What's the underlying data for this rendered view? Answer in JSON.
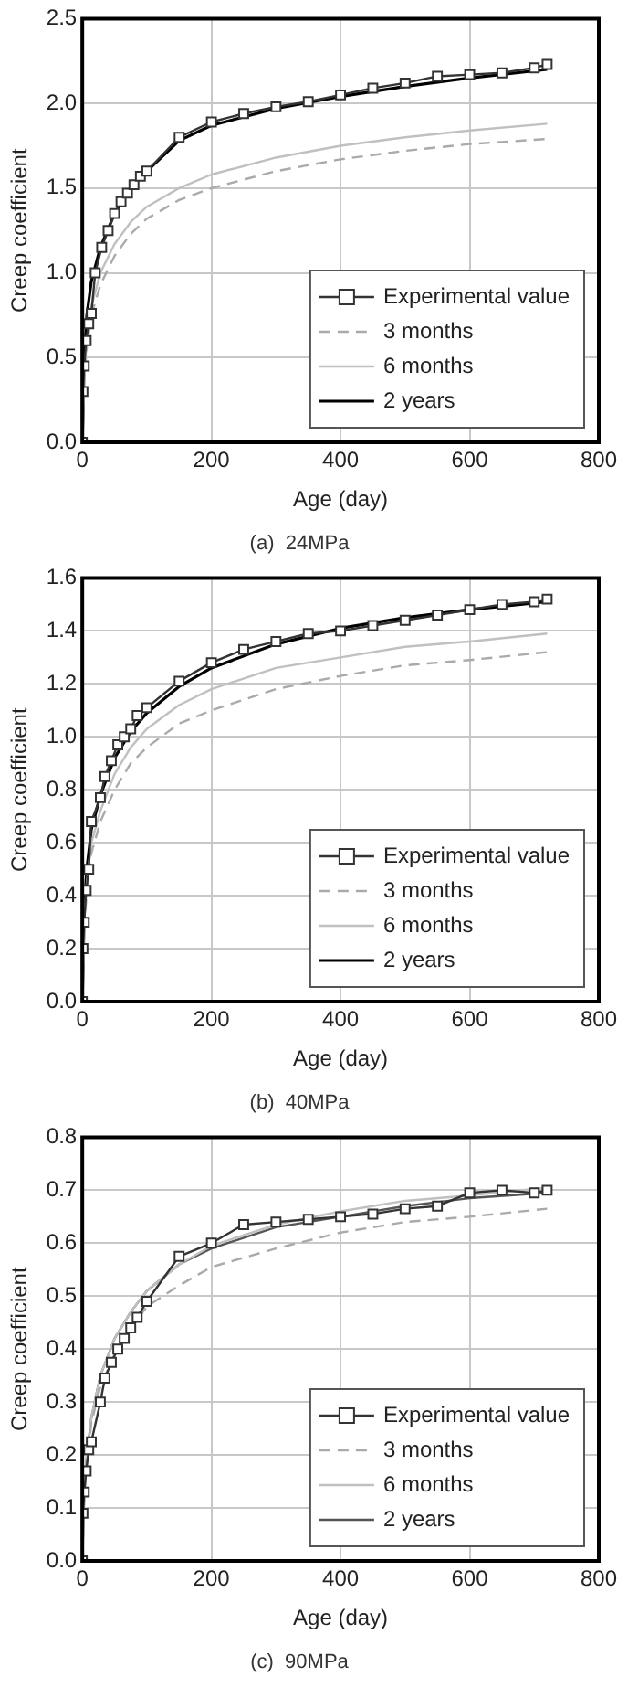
{
  "chart_data": [
    {
      "type": "line",
      "title": "(a)  24MPa",
      "xlabel": "Age (day)",
      "ylabel": "Creep coefficient",
      "xlim": [
        0,
        800
      ],
      "xticks": [
        0,
        200,
        400,
        600,
        800
      ],
      "ylim": [
        0,
        2.5
      ],
      "yticks": [
        {
          "value": 0,
          "label": "0.0"
        },
        {
          "value": 0.5,
          "label": "0.5"
        },
        {
          "value": 1,
          "label": "1.0"
        },
        {
          "value": 1.5,
          "label": "1.5"
        },
        {
          "value": 2,
          "label": "2.0"
        },
        {
          "value": 2.5,
          "label": "2.5"
        }
      ],
      "grid": true,
      "legend": "bottom right",
      "series": [
        {
          "name": "Experimental value",
          "color": "#333333",
          "marker": "square",
          "line_style": "solid",
          "x": [
            0,
            1,
            3,
            6,
            10,
            14,
            20,
            30,
            40,
            50,
            60,
            70,
            80,
            90,
            100,
            150,
            200,
            250,
            300,
            350,
            400,
            450,
            500,
            550,
            600,
            650,
            700,
            720
          ],
          "values": [
            0,
            0.3,
            0.45,
            0.6,
            0.7,
            0.76,
            1.0,
            1.15,
            1.25,
            1.35,
            1.42,
            1.47,
            1.52,
            1.57,
            1.6,
            1.8,
            1.89,
            1.94,
            1.98,
            2.01,
            2.05,
            2.09,
            2.12,
            2.16,
            2.17,
            2.18,
            2.21,
            2.23
          ]
        },
        {
          "name": "3 months",
          "color": "#aaaaaa",
          "marker": "none",
          "line_style": "dashed",
          "x": [
            0,
            3,
            7,
            14,
            28,
            50,
            75,
            100,
            150,
            200,
            300,
            400,
            500,
            600,
            720
          ],
          "values": [
            0,
            0.38,
            0.56,
            0.75,
            0.93,
            1.1,
            1.23,
            1.32,
            1.43,
            1.5,
            1.6,
            1.67,
            1.72,
            1.76,
            1.79
          ]
        },
        {
          "name": "6 months",
          "color": "#c0c0c0",
          "marker": "none",
          "line_style": "solid",
          "x": [
            0,
            3,
            7,
            14,
            28,
            50,
            75,
            100,
            150,
            200,
            300,
            400,
            500,
            600,
            720
          ],
          "values": [
            0,
            0.4,
            0.6,
            0.8,
            1.0,
            1.17,
            1.3,
            1.39,
            1.5,
            1.58,
            1.68,
            1.75,
            1.8,
            1.84,
            1.88
          ]
        },
        {
          "name": "2 years",
          "color": "#000000",
          "marker": "none",
          "line_style": "solid",
          "x": [
            0,
            3,
            7,
            14,
            28,
            50,
            75,
            100,
            150,
            200,
            300,
            400,
            500,
            600,
            720
          ],
          "values": [
            0,
            0.5,
            0.75,
            0.95,
            1.15,
            1.35,
            1.5,
            1.6,
            1.78,
            1.87,
            1.97,
            2.04,
            2.1,
            2.15,
            2.2
          ]
        }
      ]
    },
    {
      "type": "line",
      "title": "(b)  40MPa",
      "xlabel": "Age (day)",
      "ylabel": "Creep coefficient",
      "xlim": [
        0,
        800
      ],
      "xticks": [
        0,
        200,
        400,
        600,
        800
      ],
      "ylim": [
        0,
        1.6
      ],
      "yticks": [
        {
          "value": 0,
          "label": "0.0"
        },
        {
          "value": 0.2,
          "label": "0.2"
        },
        {
          "value": 0.4,
          "label": "0.4"
        },
        {
          "value": 0.6,
          "label": "0.6"
        },
        {
          "value": 0.8,
          "label": "0.8"
        },
        {
          "value": 1,
          "label": "1.0"
        },
        {
          "value": 1.2,
          "label": "1.2"
        },
        {
          "value": 1.4,
          "label": "1.4"
        },
        {
          "value": 1.6,
          "label": "1.6"
        }
      ],
      "grid": true,
      "legend": "bottom right",
      "series": [
        {
          "name": "Experimental value",
          "color": "#333333",
          "marker": "square",
          "line_style": "solid",
          "x": [
            0,
            1,
            3,
            6,
            10,
            14,
            28,
            35,
            45,
            55,
            65,
            75,
            85,
            100,
            150,
            200,
            250,
            300,
            350,
            400,
            450,
            500,
            550,
            600,
            650,
            700,
            720
          ],
          "values": [
            0,
            0.2,
            0.3,
            0.42,
            0.5,
            0.68,
            0.77,
            0.85,
            0.91,
            0.97,
            1.0,
            1.03,
            1.08,
            1.11,
            1.21,
            1.28,
            1.33,
            1.36,
            1.39,
            1.4,
            1.42,
            1.44,
            1.46,
            1.48,
            1.5,
            1.51,
            1.52
          ]
        },
        {
          "name": "3 months",
          "color": "#aaaaaa",
          "marker": "none",
          "line_style": "dashed",
          "x": [
            0,
            3,
            7,
            14,
            28,
            50,
            75,
            100,
            150,
            200,
            300,
            400,
            500,
            600,
            720
          ],
          "values": [
            0,
            0.28,
            0.42,
            0.56,
            0.68,
            0.8,
            0.9,
            0.96,
            1.05,
            1.1,
            1.18,
            1.23,
            1.27,
            1.29,
            1.32
          ]
        },
        {
          "name": "6 months",
          "color": "#c0c0c0",
          "marker": "none",
          "line_style": "solid",
          "x": [
            0,
            3,
            7,
            14,
            28,
            50,
            75,
            100,
            150,
            200,
            300,
            400,
            500,
            600,
            720
          ],
          "values": [
            0,
            0.3,
            0.45,
            0.6,
            0.72,
            0.86,
            0.96,
            1.03,
            1.12,
            1.18,
            1.26,
            1.3,
            1.34,
            1.36,
            1.39
          ]
        },
        {
          "name": "2 years",
          "color": "#000000",
          "marker": "none",
          "line_style": "solid",
          "x": [
            0,
            3,
            7,
            14,
            28,
            50,
            75,
            100,
            150,
            200,
            300,
            400,
            500,
            600,
            720
          ],
          "values": [
            0,
            0.35,
            0.5,
            0.65,
            0.78,
            0.92,
            1.02,
            1.09,
            1.19,
            1.26,
            1.35,
            1.41,
            1.45,
            1.48,
            1.51
          ]
        }
      ]
    },
    {
      "type": "line",
      "title": "(c)  90MPa",
      "xlabel": "Age (day)",
      "ylabel": "Creep coefficient",
      "xlim": [
        0,
        800
      ],
      "xticks": [
        0,
        200,
        400,
        600,
        800
      ],
      "ylim": [
        0,
        0.8
      ],
      "yticks": [
        {
          "value": 0,
          "label": "0.0"
        },
        {
          "value": 0.1,
          "label": "0.1"
        },
        {
          "value": 0.2,
          "label": "0.2"
        },
        {
          "value": 0.3,
          "label": "0.3"
        },
        {
          "value": 0.4,
          "label": "0.4"
        },
        {
          "value": 0.5,
          "label": "0.5"
        },
        {
          "value": 0.6,
          "label": "0.6"
        },
        {
          "value": 0.7,
          "label": "0.7"
        },
        {
          "value": 0.8,
          "label": "0.8"
        }
      ],
      "grid": true,
      "legend": "bottom right",
      "series": [
        {
          "name": "Experimental value",
          "color": "#333333",
          "marker": "square",
          "line_style": "solid",
          "x": [
            0,
            1,
            3,
            6,
            10,
            14,
            28,
            35,
            45,
            55,
            65,
            75,
            85,
            100,
            150,
            200,
            250,
            300,
            350,
            400,
            450,
            500,
            550,
            600,
            650,
            700,
            720
          ],
          "values": [
            0,
            0.09,
            0.13,
            0.17,
            0.21,
            0.225,
            0.3,
            0.345,
            0.375,
            0.4,
            0.42,
            0.44,
            0.46,
            0.49,
            0.575,
            0.6,
            0.635,
            0.64,
            0.645,
            0.65,
            0.655,
            0.665,
            0.67,
            0.695,
            0.7,
            0.695,
            0.7
          ]
        },
        {
          "name": "3 months",
          "color": "#aaaaaa",
          "marker": "none",
          "line_style": "dashed",
          "x": [
            0,
            3,
            7,
            14,
            28,
            50,
            75,
            100,
            150,
            200,
            300,
            400,
            500,
            600,
            720
          ],
          "values": [
            0,
            0.12,
            0.19,
            0.26,
            0.33,
            0.39,
            0.44,
            0.48,
            0.52,
            0.555,
            0.59,
            0.62,
            0.64,
            0.65,
            0.665
          ]
        },
        {
          "name": "6 months",
          "color": "#c0c0c0",
          "marker": "none",
          "line_style": "solid",
          "x": [
            0,
            3,
            7,
            14,
            28,
            50,
            75,
            100,
            150,
            200,
            300,
            400,
            500,
            600,
            720
          ],
          "values": [
            0,
            0.13,
            0.2,
            0.27,
            0.35,
            0.42,
            0.47,
            0.51,
            0.56,
            0.595,
            0.635,
            0.66,
            0.68,
            0.69,
            0.705
          ]
        },
        {
          "name": "2 years",
          "color": "#555555",
          "marker": "none",
          "line_style": "solid",
          "x": [
            0,
            3,
            7,
            14,
            28,
            50,
            75,
            100,
            150,
            200,
            300,
            400,
            500,
            600,
            720
          ],
          "values": [
            0,
            0.13,
            0.2,
            0.27,
            0.35,
            0.42,
            0.47,
            0.51,
            0.56,
            0.59,
            0.63,
            0.65,
            0.67,
            0.685,
            0.695
          ]
        }
      ]
    }
  ]
}
